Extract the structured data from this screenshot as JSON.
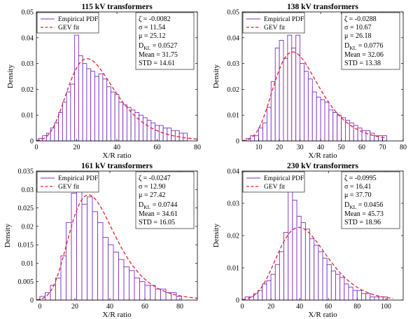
{
  "figure": {
    "panels": [
      {
        "title": "115 kV transformers",
        "xlabel": "X/R ratio",
        "ylabel": "Density",
        "legend": {
          "hist_label": "Empirical PDF",
          "fit_label": "GEV fit",
          "position": "top-left"
        },
        "stats": [
          "ζ = -0.0082",
          "σ = 11.54",
          "μ = 25.12",
          "D_KL = 0.0527",
          "Mean = 31.75",
          "STD = 14.61"
        ]
      },
      {
        "title": "138 kV transformers",
        "xlabel": "X/R ratio",
        "ylabel": "Density",
        "legend": {
          "hist_label": "Empirical PDF",
          "fit_label": "GEV fit",
          "position": "top-left"
        },
        "stats": [
          "ζ = -0.0288",
          "σ = 10.67",
          "μ = 26.18",
          "D_KL = 0.0776",
          "Mean = 32.06",
          "STD = 13.38"
        ]
      },
      {
        "title": "161 kV transformers",
        "xlabel": "X/R ratio",
        "ylabel": "Density",
        "legend": {
          "hist_label": "Empirical PDF",
          "fit_label": "GEV fit",
          "position": "top-left"
        },
        "stats": [
          "ζ = -0.0247",
          "σ = 12.90",
          "μ = 27.42",
          "D_KL = 0.0744",
          "Mean = 34.61",
          "STD = 16.05"
        ]
      },
      {
        "title": "230 kV transformers",
        "xlabel": "X/R ratio",
        "ylabel": "Density",
        "legend": {
          "hist_label": "Empirical PDF",
          "fit_label": "GEV fit",
          "position": "top-left"
        },
        "stats": [
          "ζ = -0.0995",
          "σ = 16.41",
          "μ = 37.70",
          "D_KL = 0.0456",
          "Mean = 45.73",
          "STD = 18.96"
        ]
      }
    ]
  },
  "chart_data": [
    {
      "type": "bar",
      "title": "115 kV transformers",
      "xlabel": "X/R ratio",
      "ylabel": "Density",
      "xlim": [
        0,
        80
      ],
      "ylim": [
        0,
        0.05
      ],
      "xticks": [
        0,
        20,
        40,
        60,
        80
      ],
      "yticks": [
        0,
        0.01,
        0.02,
        0.03,
        0.04,
        0.05
      ],
      "ytick_labels": [
        "0",
        "0.01",
        "0.02",
        "0.03",
        "0.04",
        "0.05"
      ],
      "hist_color": "#7B2FBE",
      "fit_color": "#E8202A",
      "bins": {
        "start": 1,
        "width": 2,
        "values": [
          0.001,
          0.002,
          0.003,
          0.005,
          0.007,
          0.011,
          0.015,
          0.019,
          0.022,
          0.041,
          0.033,
          0.03,
          0.028,
          0.027,
          0.025,
          0.026,
          0.024,
          0.021,
          0.019,
          0.018,
          0.015,
          0.014,
          0.013,
          0.012,
          0.011,
          0.01,
          0.009,
          0.008,
          0.007,
          0.006,
          0.006,
          0.005,
          0.005,
          0.004,
          0.004,
          0.003,
          0.003
        ]
      },
      "fit": {
        "label": "GEV fit",
        "zeta": -0.0082,
        "sigma": 11.54,
        "mu": 25.12,
        "x_range": [
          0,
          80
        ]
      }
    },
    {
      "type": "bar",
      "title": "138 kV transformers",
      "xlabel": "X/R ratio",
      "ylabel": "Density",
      "xlim": [
        2,
        80
      ],
      "ylim": [
        0,
        0.05
      ],
      "xticks": [
        10,
        20,
        30,
        40,
        50,
        60,
        70,
        80
      ],
      "yticks": [
        0,
        0.01,
        0.02,
        0.03,
        0.04,
        0.05
      ],
      "ytick_labels": [
        "0",
        "0.01",
        "0.02",
        "0.03",
        "0.04",
        "0.05"
      ],
      "hist_color": "#7B2FBE",
      "fit_color": "#E8202A",
      "bins": {
        "start": 4,
        "width": 2,
        "values": [
          0.001,
          0.002,
          0.002,
          0.005,
          0.007,
          0.013,
          0.023,
          0.036,
          0.039,
          0.032,
          0.041,
          0.036,
          0.041,
          0.03,
          0.027,
          0.024,
          0.019,
          0.017,
          0.016,
          0.015,
          0.012,
          0.011,
          0.01,
          0.009,
          0.008,
          0.007,
          0.006,
          0.005,
          0.004,
          0.004,
          0.003,
          0.002,
          0.002,
          0.002
        ]
      },
      "fit": {
        "label": "GEV fit",
        "zeta": -0.0288,
        "sigma": 10.67,
        "mu": 26.18,
        "x_range": [
          2,
          72
        ]
      }
    },
    {
      "type": "bar",
      "title": "161 kV transformers",
      "xlabel": "X/R ratio",
      "ylabel": "Density",
      "xlim": [
        -2,
        90
      ],
      "ylim": [
        0,
        0.035
      ],
      "xticks": [
        0,
        20,
        40,
        60,
        80
      ],
      "yticks": [
        0,
        0.005,
        0.01,
        0.015,
        0.02,
        0.025,
        0.03,
        0.035
      ],
      "ytick_labels": [
        "0",
        "0.005",
        "0.01",
        "0.015",
        "0.02",
        "0.025",
        "0.03",
        "0.035"
      ],
      "hist_color": "#7B2FBE",
      "fit_color": "#E8202A",
      "bins": {
        "start": 0,
        "width": 3,
        "values": [
          0.001,
          0.002,
          0.004,
          0.006,
          0.012,
          0.021,
          0.029,
          0.033,
          0.026,
          0.028,
          0.024,
          0.021,
          0.017,
          0.015,
          0.013,
          0.011,
          0.009,
          0.008,
          0.006,
          0.005,
          0.004,
          0.004,
          0.003,
          0.003,
          0.002,
          0.002,
          0.001
        ]
      },
      "fit": {
        "label": "GEV fit",
        "zeta": -0.0247,
        "sigma": 12.9,
        "mu": 27.42,
        "x_range": [
          -2,
          90
        ]
      }
    },
    {
      "type": "bar",
      "title": "230 kV transformers",
      "xlabel": "X/R ratio",
      "ylabel": "Density",
      "xlim": [
        0,
        112
      ],
      "ylim": [
        0,
        0.04
      ],
      "xticks": [
        0,
        20,
        40,
        60,
        80,
        100
      ],
      "yticks": [
        0,
        0.01,
        0.02,
        0.03,
        0.04
      ],
      "ytick_labels": [
        "0",
        "0.01",
        "0.02",
        "0.03",
        "0.04"
      ],
      "hist_color": "#7B2FBE",
      "fit_color": "#E8202A",
      "bins": {
        "start": 2,
        "width": 3,
        "values": [
          0.001,
          0.001,
          0.002,
          0.003,
          0.005,
          0.006,
          0.008,
          0.011,
          0.015,
          0.021,
          0.036,
          0.031,
          0.026,
          0.024,
          0.022,
          0.019,
          0.017,
          0.015,
          0.013,
          0.011,
          0.009,
          0.008,
          0.007,
          0.005,
          0.004,
          0.003,
          0.003,
          0.002,
          0.002,
          0.001,
          0.001,
          0.001,
          0.001
        ]
      },
      "fit": {
        "label": "GEV fit",
        "zeta": -0.0995,
        "sigma": 16.41,
        "mu": 37.7,
        "x_range": [
          0,
          105
        ]
      }
    }
  ]
}
